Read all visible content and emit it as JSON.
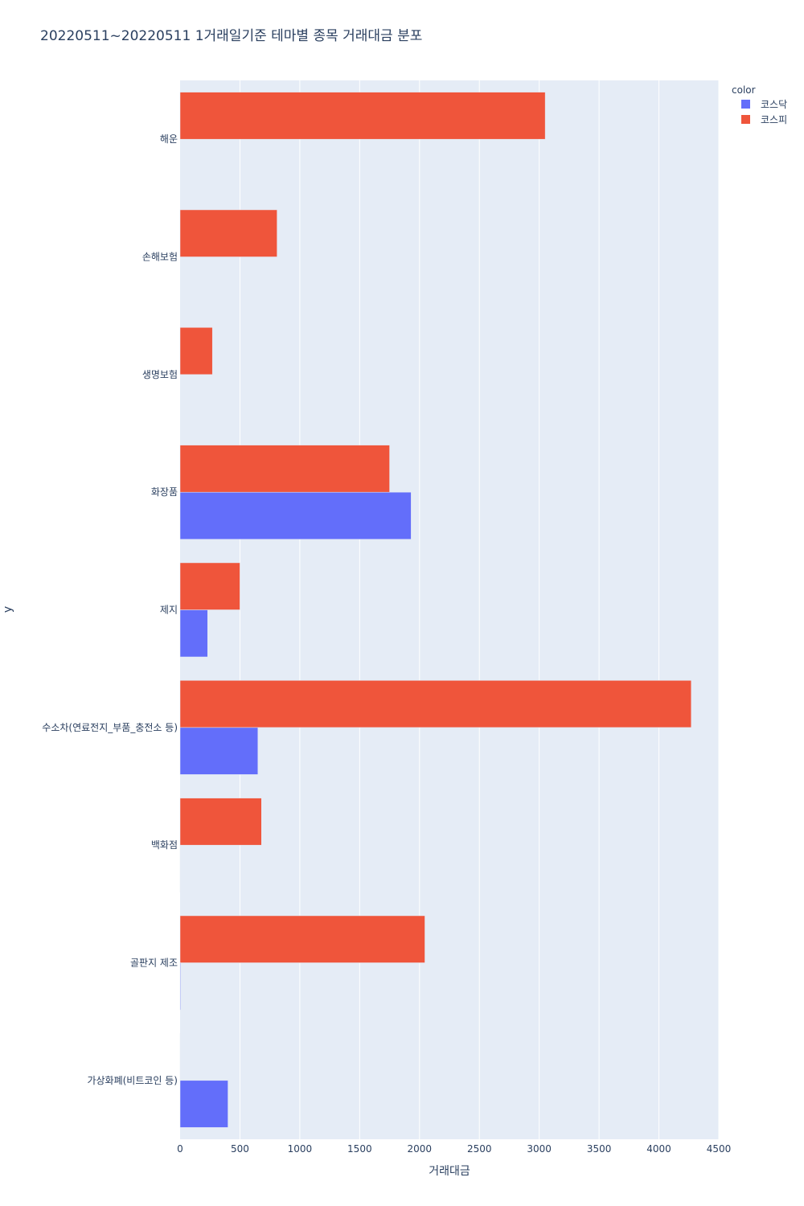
{
  "chart_data": {
    "type": "bar",
    "orientation": "horizontal",
    "barmode": "group",
    "title": "20220511~20220511 1거래일기준 테마별 종목 거래대금 분포",
    "xlabel": "거래대금",
    "ylabel": "y",
    "xlim": [
      0,
      4500
    ],
    "xticks": [
      0,
      500,
      1000,
      1500,
      2000,
      2500,
      3000,
      3500,
      4000,
      4500
    ],
    "grid": true,
    "legend": {
      "title": "color",
      "position": "top-right"
    },
    "categories": [
      "해운",
      "손해보험",
      "생명보험",
      "화장품",
      "제지",
      "수소차(연료전지_부품_충전소 등)",
      "백화점",
      "골판지 제조",
      "가상화폐(비트코인 등)"
    ],
    "series": [
      {
        "name": "코스닥",
        "color": "#636efa",
        "values": [
          0,
          0,
          0,
          1930,
          230,
          650,
          3,
          5,
          400
        ]
      },
      {
        "name": "코스피",
        "color": "#ef553b",
        "values": [
          3050,
          810,
          270,
          1750,
          500,
          4270,
          680,
          2045,
          3
        ]
      }
    ]
  }
}
